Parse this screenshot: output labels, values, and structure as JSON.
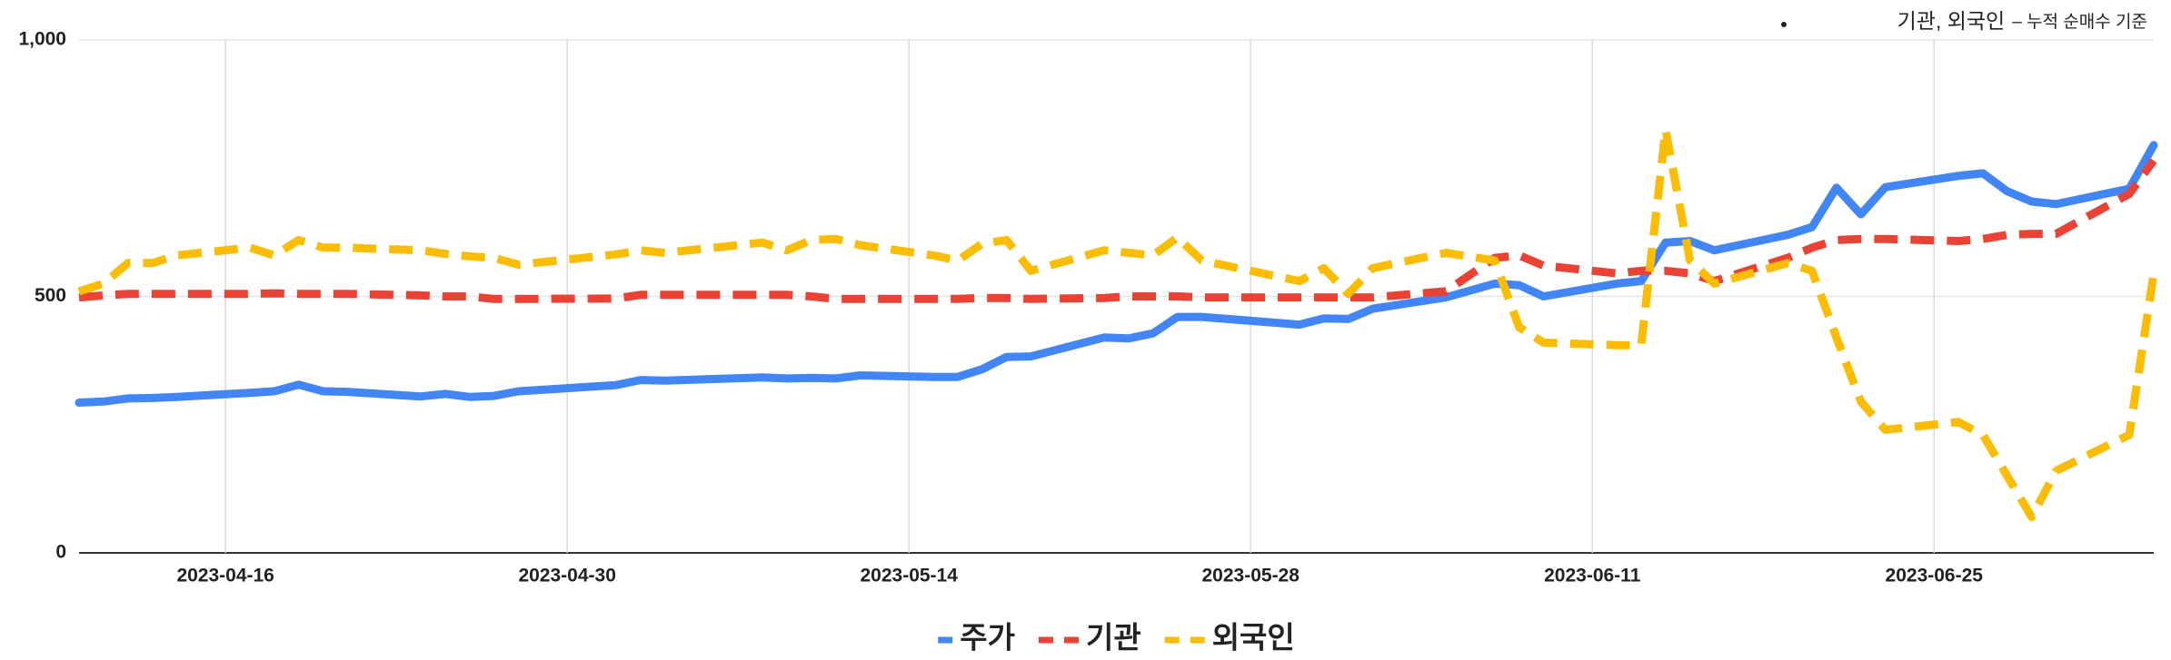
{
  "chart_data": {
    "type": "line",
    "annotation": [
      "기관, 외국인",
      "– 누적 순매수 기준"
    ],
    "x": [
      "2023-04-10",
      "2023-04-11",
      "2023-04-12",
      "2023-04-13",
      "2023-04-14",
      "2023-04-17",
      "2023-04-18",
      "2023-04-19",
      "2023-04-20",
      "2023-04-21",
      "2023-04-24",
      "2023-04-25",
      "2023-04-26",
      "2023-04-27",
      "2023-04-28",
      "2023-05-02",
      "2023-05-03",
      "2023-05-04",
      "2023-05-08",
      "2023-05-09",
      "2023-05-10",
      "2023-05-11",
      "2023-05-12",
      "2023-05-15",
      "2023-05-16",
      "2023-05-17",
      "2023-05-18",
      "2023-05-19",
      "2023-05-22",
      "2023-05-23",
      "2023-05-24",
      "2023-05-25",
      "2023-05-26",
      "2023-05-30",
      "2023-05-31",
      "2023-06-01",
      "2023-06-02",
      "2023-06-05",
      "2023-06-07",
      "2023-06-08",
      "2023-06-09",
      "2023-06-12",
      "2023-06-13",
      "2023-06-14",
      "2023-06-15",
      "2023-06-16",
      "2023-06-19",
      "2023-06-20",
      "2023-06-21",
      "2023-06-22",
      "2023-06-23",
      "2023-06-26",
      "2023-06-27",
      "2023-06-28",
      "2023-06-29",
      "2023-06-30",
      "2023-07-03",
      "2023-07-04"
    ],
    "xlim": [
      "2023-04-10",
      "2023-07-04"
    ],
    "xticks": [
      "2023-04-16",
      "2023-04-30",
      "2023-05-14",
      "2023-05-28",
      "2023-06-11",
      "2023-06-25"
    ],
    "ylim": [
      0,
      1000
    ],
    "yticks": [
      0,
      500,
      {
        "value": 1000,
        "label": "1,000"
      }
    ],
    "grid": true,
    "legend": "bottom",
    "series": [
      {
        "name": "주가",
        "color": "#4285f4",
        "dashed": false,
        "values": [
          293,
          295,
          301,
          302,
          304,
          312,
          315,
          328,
          315,
          314,
          305,
          310,
          304,
          306,
          315,
          327,
          337,
          336,
          342,
          340,
          341,
          340,
          346,
          343,
          343,
          358,
          382,
          383,
          420,
          418,
          428,
          460,
          460,
          445,
          457,
          456,
          476,
          498,
          525,
          522,
          500,
          525,
          530,
          605,
          608,
          590,
          620,
          635,
          712,
          660,
          713,
          735,
          740,
          705,
          685,
          680,
          710,
          795
        ]
      },
      {
        "name": "기관",
        "color": "#ea4335",
        "dashed": true,
        "values": [
          498,
          502,
          505,
          505,
          505,
          505,
          506,
          505,
          505,
          505,
          502,
          500,
          500,
          495,
          495,
          496,
          503,
          503,
          503,
          503,
          500,
          495,
          495,
          495,
          495,
          497,
          497,
          495,
          497,
          500,
          500,
          500,
          498,
          498,
          498,
          498,
          498,
          510,
          575,
          580,
          560,
          545,
          550,
          550,
          545,
          530,
          575,
          595,
          610,
          612,
          612,
          608,
          612,
          620,
          622,
          622,
          700,
          765
        ]
      },
      {
        "name": "외국인",
        "color": "#fbbc04",
        "dashed": true,
        "values": [
          510,
          525,
          565,
          565,
          580,
          595,
          580,
          610,
          595,
          595,
          590,
          583,
          578,
          575,
          562,
          582,
          590,
          585,
          605,
          590,
          610,
          612,
          600,
          580,
          570,
          603,
          610,
          550,
          590,
          585,
          580,
          615,
          570,
          530,
          555,
          505,
          555,
          585,
          570,
          440,
          410,
          405,
          405,
          825,
          570,
          525,
          565,
          550,
          420,
          295,
          240,
          255,
          230,
          150,
          70,
          160,
          230,
          545
        ]
      }
    ]
  }
}
